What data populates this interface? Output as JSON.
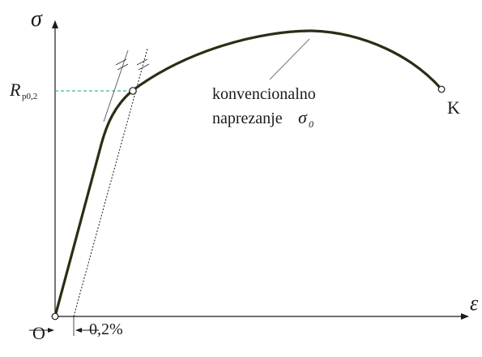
{
  "axes": {
    "y_symbol": "σ",
    "x_symbol": "ε",
    "origin_label": "O"
  },
  "yield_point": {
    "symbol_main": "R",
    "symbol_sub": "p0,2"
  },
  "offset": {
    "label": "0,2%"
  },
  "curve": {
    "annotation_line1": "konvencionalno",
    "annotation_line2_text": "naprezanje",
    "annotation_symbol": "σ",
    "annotation_symbol_sub": "0",
    "end_label": "K"
  },
  "colors": {
    "curve": "#2a2e14",
    "axes": "#1a1a1a",
    "yield_guide": "#3cb4a8",
    "background": "#ffffff"
  }
}
